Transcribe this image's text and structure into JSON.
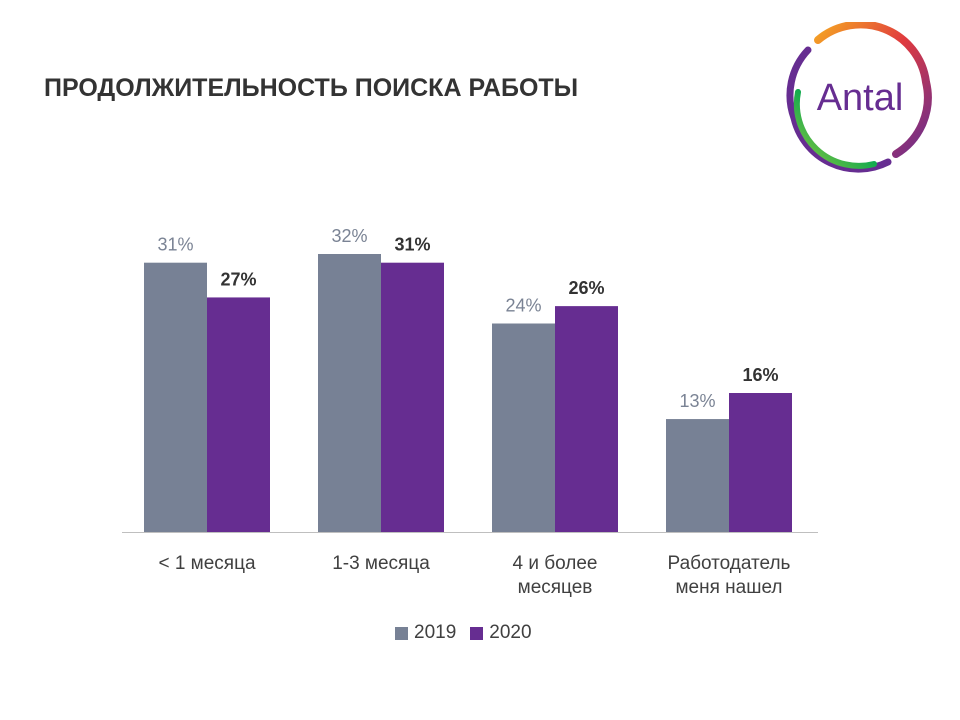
{
  "title": "ПРОДОЛЖИТЕЛЬНОСТЬ ПОИСКА РАБОТЫ",
  "logo": {
    "text": "Antal",
    "icon": "antal-ring-logo"
  },
  "colors": {
    "s2019": "#778195",
    "s2020": "#662d91",
    "axis": "#bfbfbf",
    "text": "#404040",
    "label2019": "#7a8394",
    "label2020": "#333333"
  },
  "chart_data": {
    "type": "bar",
    "categories": [
      [
        "< 1 месяца"
      ],
      [
        "1-3 месяца"
      ],
      [
        "4 и более",
        "месяцев"
      ],
      [
        "Работодатель",
        "меня нашел"
      ]
    ],
    "series": [
      {
        "name": "2019",
        "values": [
          31,
          32,
          24,
          13
        ],
        "labels": [
          "31%",
          "32%",
          "24%",
          "13%"
        ]
      },
      {
        "name": "2020",
        "values": [
          27,
          31,
          26,
          16
        ],
        "labels": [
          "27%",
          "31%",
          "26%",
          "16%"
        ]
      }
    ],
    "ylim": [
      0,
      32
    ],
    "grid": false,
    "legend": "bottom"
  }
}
